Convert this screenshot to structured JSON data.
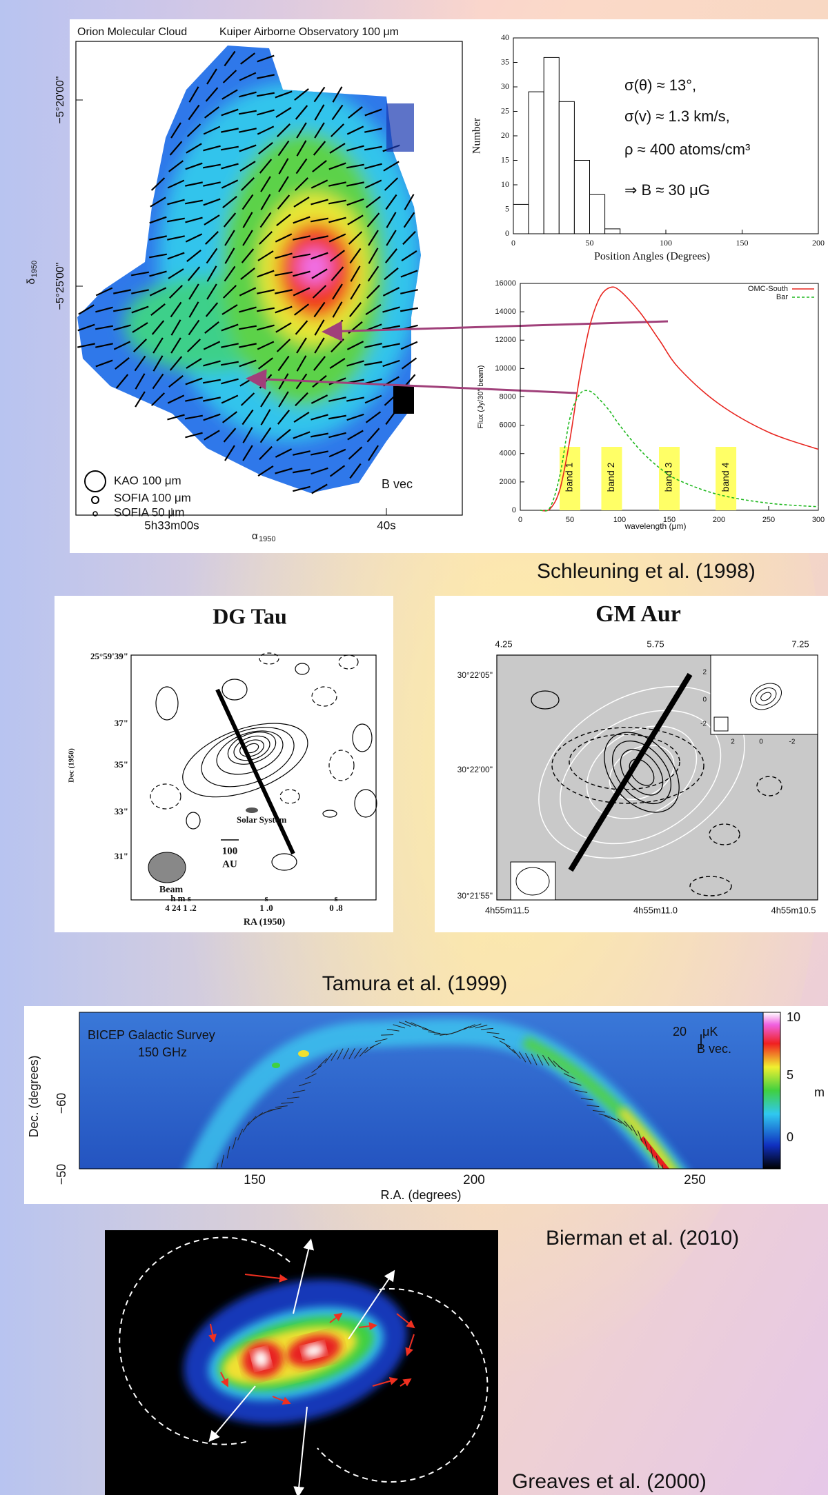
{
  "orion_map": {
    "title": "Orion Molecular Cloud",
    "instrument": "Kuiper Airborne Observatory 100 μm",
    "dec_ticks": [
      "−5°20'00\"",
      "−5°25'00\""
    ],
    "dec_label": {
      "symbol": "δ",
      "subscript": "1950"
    },
    "ra_ticks": [
      "5h33m00s",
      "40s"
    ],
    "ra_label": {
      "symbol": "α",
      "subscript": "1950"
    },
    "legend": [
      "KAO 100 μm",
      "SOFIA 100 μm",
      "SOFIA 50 μm"
    ],
    "vector_label": "B vec"
  },
  "chart_data": [
    {
      "type": "histogram",
      "ylabel": "Number",
      "xlabel": "Position Angles (Degrees)",
      "bins": [
        0,
        10,
        20,
        30,
        40,
        50,
        60,
        70
      ],
      "counts": [
        6,
        29,
        36,
        27,
        15,
        8,
        1
      ],
      "color": "#ffffff",
      "xlim": [
        0,
        200
      ],
      "ylim": [
        0,
        40
      ],
      "xticks": [
        0,
        50,
        100,
        150,
        200
      ],
      "yticks": [
        0,
        5,
        10,
        15,
        20,
        25,
        30,
        35,
        40
      ],
      "annotations": [
        "σ(θ) ≈ 13°,",
        "σ(v) ≈ 1.3 km/s,",
        "ρ ≈ 400 atoms/cm³",
        "⇒ B ≈ 30 μG"
      ]
    },
    {
      "type": "line",
      "xlabel": "wavelength (μm)",
      "ylabel": "Flux (Jy/30\" beam)",
      "x": [
        20,
        30,
        40,
        50,
        60,
        70,
        80,
        90,
        100,
        120,
        140,
        160,
        200,
        250,
        300
      ],
      "series": [
        {
          "name": "OMC-South",
          "color": "#e8251f",
          "dash": false,
          "values": [
            0,
            100,
            1500,
            5000,
            9500,
            13000,
            15000,
            15700,
            15500,
            14000,
            12000,
            10000,
            7500,
            5500,
            4300
          ]
        },
        {
          "name": "Bar",
          "color": "#1fb81f",
          "dash": true,
          "values": [
            0,
            200,
            2500,
            6500,
            8200,
            8400,
            7800,
            7000,
            6000,
            4300,
            3000,
            2100,
            1100,
            500,
            250
          ]
        }
      ],
      "xlim": [
        0,
        300
      ],
      "ylim": [
        0,
        16000
      ],
      "xticks": [
        0,
        50,
        100,
        150,
        200,
        250,
        300
      ],
      "yticks": [
        0,
        2000,
        4000,
        6000,
        8000,
        10000,
        12000,
        14000,
        16000
      ],
      "bands": [
        {
          "value": 50,
          "label": "band 1"
        },
        {
          "value": 92,
          "label": "band 2"
        },
        {
          "value": 150,
          "label": "band 3"
        },
        {
          "value": 207,
          "label": "band 4"
        }
      ],
      "band_color": "#ffff66",
      "legend": "upper right"
    }
  ],
  "schleuning_caption": "Schleuning et al. (1998)",
  "dg_tau": {
    "title": "DG Tau",
    "dec_ticks": [
      "25°59'39\"",
      "37\"",
      "35\"",
      "33\"",
      "31\""
    ],
    "dec_label": "Dec (1950)",
    "solar_system": "Solar System",
    "scale_bar": [
      "100",
      "AU"
    ],
    "beam": "Beam",
    "ra_units": [
      "h  m  s",
      "s",
      "s"
    ],
    "ra_ticks": [
      "4 24  1 .2",
      "1 .0",
      "0 .8"
    ],
    "ra_label": "RA (1950)"
  },
  "gm_aur": {
    "title": "GM Aur",
    "top_ticks": [
      "4.25",
      "5.75",
      "7.25"
    ],
    "dec_ticks": [
      "30°22'05\"",
      "30°22'00\"",
      "30°21'55\""
    ],
    "ra_ticks": [
      "4h55m11.5",
      "4h55m11.0",
      "4h55m10.5"
    ],
    "inset_y_ticks": [
      "2",
      "0",
      "-2"
    ],
    "inset_x_ticks": [
      "2",
      "0",
      "-2"
    ]
  },
  "tamura_caption": "Tamura et al. (1999)",
  "bicep": {
    "title": "BICEP Galactic Survey",
    "frequency": "150 GHz",
    "scale_value": "20",
    "scale_unit": "μK",
    "vector_label": "B vec.",
    "ylabel": "Dec. (degrees)",
    "yticks": [
      "−60",
      "−50"
    ],
    "xlabel": "R.A. (degrees)",
    "xticks": [
      "150",
      "200",
      "250"
    ],
    "colorbar_ticks": [
      "10",
      "5",
      "0"
    ],
    "colorbar_label": "m"
  },
  "bierman_caption": "Bierman et al. (2010)",
  "greaves_caption": "Greaves et al. (2000)"
}
